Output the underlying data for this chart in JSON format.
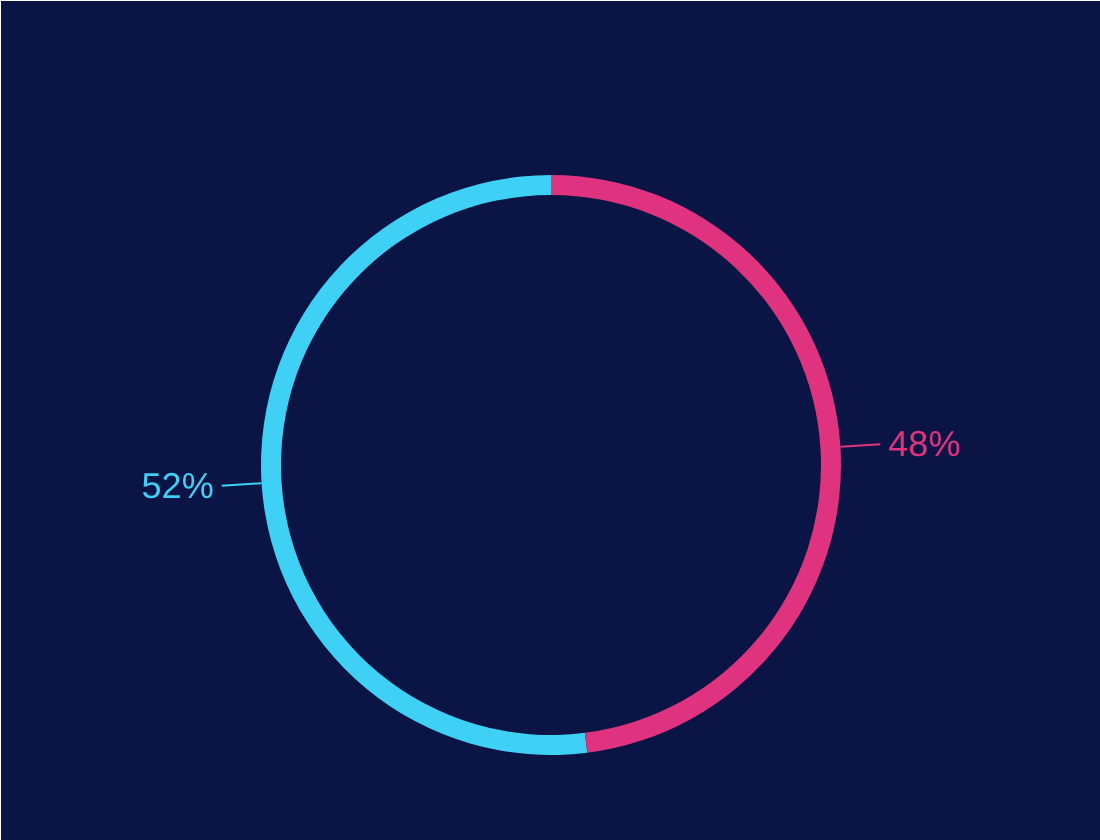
{
  "chart_data": {
    "type": "donut",
    "categories": [
      null,
      null
    ],
    "values": [
      52,
      48
    ],
    "colors": [
      "#3fd0f5",
      "#e0337f"
    ],
    "value_labels": [
      "52%",
      "48%"
    ]
  }
}
